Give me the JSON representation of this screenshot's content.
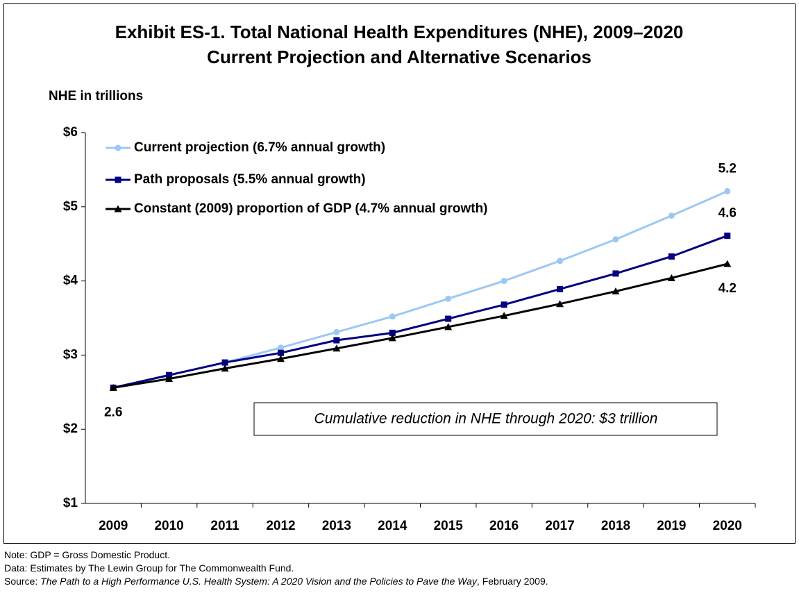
{
  "chart_data": {
    "type": "line",
    "title": "Exhibit ES-1. Total National Health Expenditures (NHE), 2009–2020",
    "subtitle": "Current Projection and Alternative Scenarios",
    "ylabel": "NHE in trillions",
    "categories": [
      "2009",
      "2010",
      "2011",
      "2012",
      "2013",
      "2014",
      "2015",
      "2016",
      "2017",
      "2018",
      "2019",
      "2020"
    ],
    "series": [
      {
        "name": "Current projection (6.7% annual growth)",
        "color": "#9dc8f2",
        "marker": "circle",
        "values": [
          2.56,
          2.73,
          2.9,
          3.1,
          3.31,
          3.52,
          3.76,
          4.0,
          4.27,
          4.56,
          4.88,
          5.21
        ],
        "value_labels": [
          "2.6",
          null,
          null,
          null,
          null,
          null,
          null,
          null,
          null,
          null,
          null,
          "5.2"
        ]
      },
      {
        "name": "Path proposals (5.5% annual growth)",
        "color": "#000080",
        "marker": "square",
        "values": [
          2.56,
          2.73,
          2.9,
          3.03,
          3.2,
          3.3,
          3.49,
          3.68,
          3.89,
          4.1,
          4.33,
          4.61
        ],
        "value_labels": [
          null,
          null,
          null,
          null,
          null,
          null,
          null,
          null,
          null,
          null,
          null,
          "4.6"
        ]
      },
      {
        "name": "Constant (2009) proportion of GDP (4.7% annual growth)",
        "color": "#000000",
        "marker": "triangle",
        "values": [
          2.56,
          2.68,
          2.82,
          2.95,
          3.09,
          3.23,
          3.38,
          3.53,
          3.69,
          3.86,
          4.04,
          4.23
        ],
        "value_labels": [
          null,
          null,
          null,
          null,
          null,
          null,
          null,
          null,
          null,
          null,
          null,
          "4.2"
        ]
      }
    ],
    "ylim": [
      1,
      6
    ],
    "yticks": [
      {
        "value": 1,
        "label": "$1"
      },
      {
        "value": 2,
        "label": "$2"
      },
      {
        "value": 3,
        "label": "$3"
      },
      {
        "value": 4,
        "label": "$4"
      },
      {
        "value": 5,
        "label": "$5"
      },
      {
        "value": 6,
        "label": "$6"
      }
    ],
    "grid": false,
    "legend": "upper left",
    "annotation": "Cumulative reduction in NHE through 2020: $3 trillion"
  },
  "notes": {
    "note": "Note: GDP = Gross Domestic Product.",
    "data": "Data: Estimates by The Lewin Group for The Commonwealth Fund.",
    "source_prefix": "Source: ",
    "source_title": "The Path to a High Performance U.S. Health System: A 2020 Vision and the Policies to Pave the Way",
    "source_suffix": ", February 2009."
  }
}
